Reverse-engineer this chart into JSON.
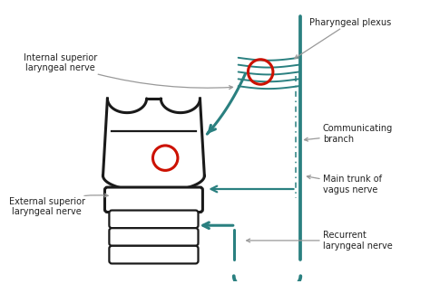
{
  "background_color": "#ffffff",
  "teal_color": "#2a8080",
  "black_color": "#1a1a1a",
  "red_color": "#cc1100",
  "gray_color": "#999999",
  "labels": {
    "pharyngeal_plexus": "Pharyngeal plexus",
    "internal_superior": "Internal superior\nlaryngeal nerve",
    "communicating_branch": "Communicating\nbranch",
    "main_trunk": "Main trunk of\nvagus nerve",
    "external_superior": "External superior\nlaryngeal nerve",
    "recurrent": "Recurrent\nlaryngeal nerve"
  }
}
